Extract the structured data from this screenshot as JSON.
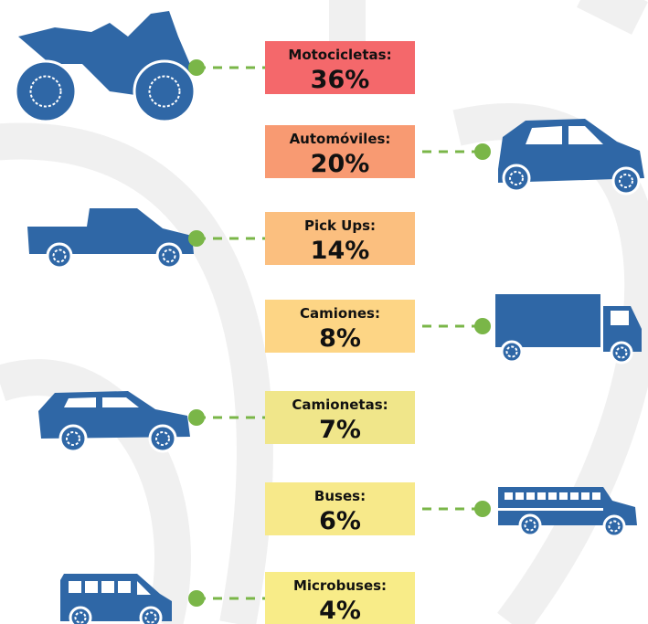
{
  "items": [
    {
      "label": "Motocicletas:",
      "value": "36%"
    },
    {
      "label": "Automóviles:",
      "value": "20%"
    },
    {
      "label": "Pick Ups:",
      "value": "14%"
    },
    {
      "label": "Camiones:",
      "value": "8%"
    },
    {
      "label": "Camionetas:",
      "value": "7%"
    },
    {
      "label": "Buses:",
      "value": "6%"
    },
    {
      "label": "Microbuses:",
      "value": "4%"
    }
  ]
}
